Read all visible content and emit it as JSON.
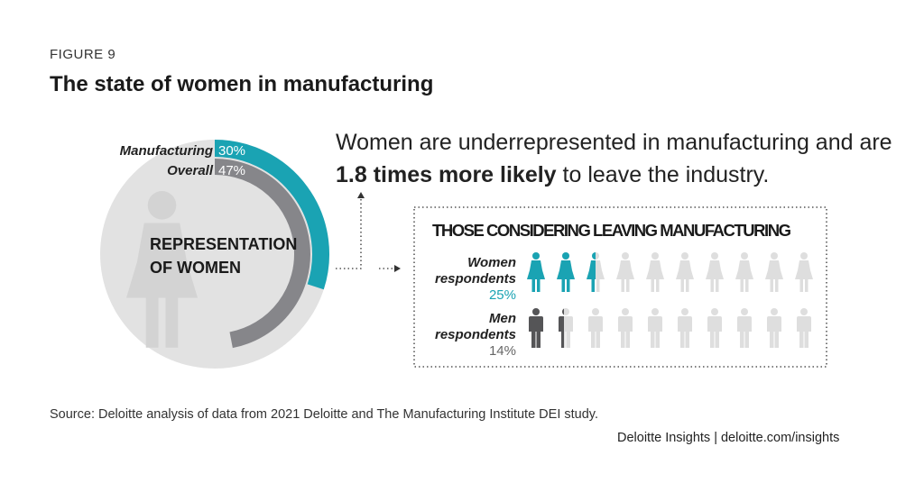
{
  "figure_label": "FIGURE 9",
  "title": "The state of women in manufacturing",
  "headline": {
    "part1": "Women are underrepresented in manufacturing and are",
    "bold": "1.8 times more likely",
    "part2": " to leave the industry."
  },
  "source": "Source: Deloitte analysis of data from 2021 Deloitte and The Manufacturing Institute DEI study.",
  "credit": "Deloitte Insights | deloitte.com/insights",
  "colors": {
    "teal": "#1aa3b3",
    "gray": "#86868a",
    "dark": "#555557",
    "light": "#e2e2e2"
  },
  "chart_data": [
    {
      "type": "pie",
      "title": "REPRESENTATION OF WOMEN",
      "title_lines": [
        "REPRESENTATION",
        "OF WOMEN"
      ],
      "series": [
        {
          "name": "Manufacturing",
          "value": 30,
          "label": "30%"
        },
        {
          "name": "Overall",
          "value": 47,
          "label": "47%"
        }
      ]
    },
    {
      "type": "bar",
      "title": "THOSE CONSIDERING LEAVING MANUFACTURING",
      "icons_total": 10,
      "series": [
        {
          "name_lines": [
            "Women",
            "respondents"
          ],
          "value": 25,
          "label": "25%",
          "icon": "woman"
        },
        {
          "name_lines": [
            "Men",
            "respondents"
          ],
          "value": 14,
          "label": "14%",
          "icon": "man"
        }
      ]
    }
  ]
}
